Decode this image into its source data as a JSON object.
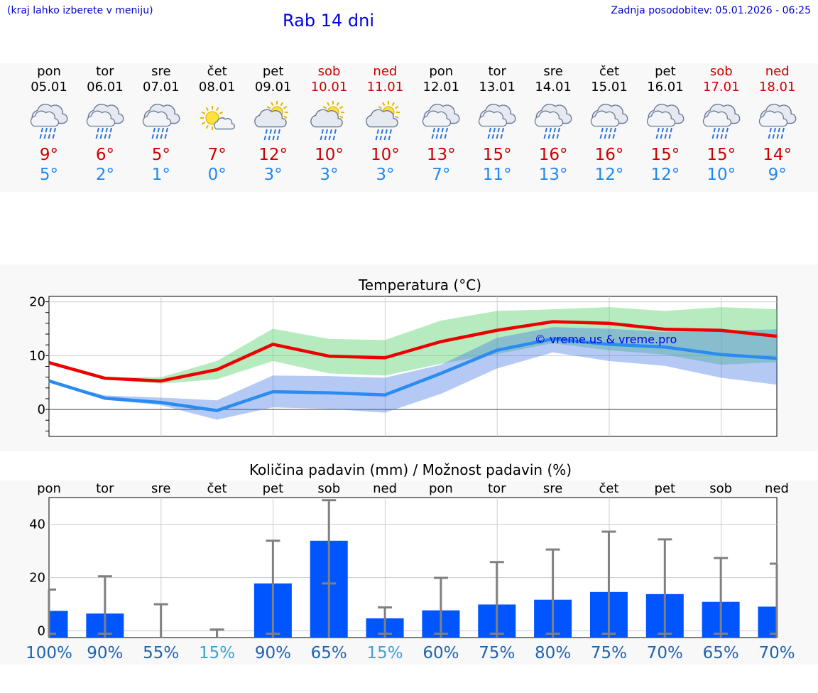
{
  "header": {
    "hint": "(kraj lahko izberete v meniju)",
    "title": "Rab 14 dni",
    "updated": "Zadnja posodobitev: 05.01.2026 - 06:25"
  },
  "colors": {
    "max": "#cc0000",
    "min": "#2288ee",
    "accent": "#0000ee",
    "bar": "#0055ff",
    "pctDark": "#1f63b0",
    "pctLight": "#3ea0d8"
  },
  "days": [
    {
      "name": "pon",
      "date": "05.01",
      "weekend": false,
      "icon": "rain-cloud-icon",
      "tmax": "9°",
      "tmin": "5°"
    },
    {
      "name": "tor",
      "date": "06.01",
      "weekend": false,
      "icon": "rain-cloud-icon",
      "tmax": "6°",
      "tmin": "2°"
    },
    {
      "name": "sre",
      "date": "07.01",
      "weekend": false,
      "icon": "rain-cloud-icon",
      "tmax": "5°",
      "tmin": "1°"
    },
    {
      "name": "čet",
      "date": "08.01",
      "weekend": false,
      "icon": "sun-cloud-icon",
      "tmax": "7°",
      "tmin": "0°"
    },
    {
      "name": "pet",
      "date": "09.01",
      "weekend": false,
      "icon": "sun-rain-cloud-icon",
      "tmax": "12°",
      "tmin": "3°"
    },
    {
      "name": "sob",
      "date": "10.01",
      "weekend": true,
      "icon": "sun-rain-cloud-icon",
      "tmax": "10°",
      "tmin": "3°"
    },
    {
      "name": "ned",
      "date": "11.01",
      "weekend": true,
      "icon": "sun-rain-cloud-icon",
      "tmax": "10°",
      "tmin": "3°"
    },
    {
      "name": "pon",
      "date": "12.01",
      "weekend": false,
      "icon": "rain-cloud-icon",
      "tmax": "13°",
      "tmin": "7°"
    },
    {
      "name": "tor",
      "date": "13.01",
      "weekend": false,
      "icon": "rain-cloud-icon",
      "tmax": "15°",
      "tmin": "11°"
    },
    {
      "name": "sre",
      "date": "14.01",
      "weekend": false,
      "icon": "rain-cloud-icon",
      "tmax": "16°",
      "tmin": "13°"
    },
    {
      "name": "čet",
      "date": "15.01",
      "weekend": false,
      "icon": "rain-cloud-icon",
      "tmax": "16°",
      "tmin": "12°"
    },
    {
      "name": "pet",
      "date": "16.01",
      "weekend": false,
      "icon": "rain-cloud-icon",
      "tmax": "15°",
      "tmin": "12°"
    },
    {
      "name": "sob",
      "date": "17.01",
      "weekend": true,
      "icon": "rain-cloud-icon",
      "tmax": "15°",
      "tmin": "10°"
    },
    {
      "name": "ned",
      "date": "18.01",
      "weekend": true,
      "icon": "rain-cloud-icon",
      "tmax": "14°",
      "tmin": "9°"
    }
  ],
  "chart_data": [
    {
      "type": "line",
      "title": "Temperatura (°C)",
      "watermark": "© vreme.us & vreme.pro",
      "xlabel": "",
      "ylabel": "",
      "ylim": [
        -5,
        21
      ],
      "yticks": [
        0,
        10,
        20
      ],
      "categories": [
        "05.01",
        "06.01",
        "07.01",
        "08.01",
        "09.01",
        "10.01",
        "11.01",
        "12.01",
        "13.01",
        "14.01",
        "15.01",
        "16.01",
        "17.01",
        "18.01"
      ],
      "series": [
        {
          "name": "max",
          "color": "#ee0000",
          "values": [
            8.7,
            5.8,
            5.3,
            7.4,
            12.1,
            9.9,
            9.6,
            12.6,
            14.7,
            16.3,
            16.0,
            14.9,
            14.7,
            13.6
          ]
        },
        {
          "name": "max-upper",
          "values": [
            8.7,
            5.9,
            6.0,
            9.0,
            15.0,
            13.1,
            12.9,
            16.5,
            18.3,
            18.6,
            19.0,
            18.3,
            19.0,
            18.6
          ]
        },
        {
          "name": "max-lower",
          "values": [
            8.7,
            5.6,
            4.8,
            5.6,
            9.0,
            6.7,
            6.3,
            8.5,
            10.3,
            12.3,
            11.0,
            10.2,
            8.3,
            8.8
          ]
        },
        {
          "name": "min",
          "color": "#2a8cf0",
          "values": [
            5.3,
            2.1,
            1.3,
            -0.2,
            3.3,
            3.1,
            2.7,
            6.7,
            11.0,
            13.1,
            12.1,
            11.6,
            10.2,
            9.5
          ]
        },
        {
          "name": "min-upper",
          "values": [
            5.3,
            2.6,
            2.2,
            1.7,
            6.3,
            6.2,
            5.9,
            8.3,
            13.3,
            15.3,
            15.0,
            14.4,
            14.6,
            14.9
          ]
        },
        {
          "name": "min-lower",
          "values": [
            5.3,
            1.8,
            0.8,
            -1.9,
            0.4,
            0.1,
            -0.6,
            2.9,
            7.6,
            10.6,
            9.0,
            8.1,
            5.9,
            4.6
          ]
        }
      ]
    },
    {
      "type": "bar",
      "title": "Količina padavin (mm) / Možnost padavin (%)",
      "xlabel": "",
      "ylabel": "",
      "ylim": [
        -2.5,
        50
      ],
      "yticks": [
        0,
        20,
        40
      ],
      "categories": [
        "pon",
        "tor",
        "sre",
        "čet",
        "pet",
        "sob",
        "ned",
        "pon",
        "tor",
        "sre",
        "čet",
        "pet",
        "sob",
        "ned"
      ],
      "values": [
        7.5,
        6.5,
        0.0,
        0.0,
        17.8,
        33.8,
        4.7,
        7.7,
        9.9,
        11.7,
        14.6,
        13.8,
        10.9,
        9.1
      ],
      "error_high": [
        15.5,
        20.5,
        10.0,
        0.5,
        33.8,
        49.0,
        8.8,
        19.9,
        25.8,
        30.5,
        37.2,
        34.3,
        27.3,
        25.2
      ],
      "error_low": [
        0.0,
        0.0,
        0.0,
        0.0,
        0.0,
        17.8,
        0.0,
        0.0,
        0.0,
        0.0,
        0.0,
        0.0,
        0.0,
        0.0
      ],
      "probability": [
        "100%",
        "90%",
        "55%",
        "15%",
        "90%",
        "65%",
        "15%",
        "60%",
        "75%",
        "80%",
        "75%",
        "70%",
        "65%",
        "70%"
      ]
    }
  ]
}
